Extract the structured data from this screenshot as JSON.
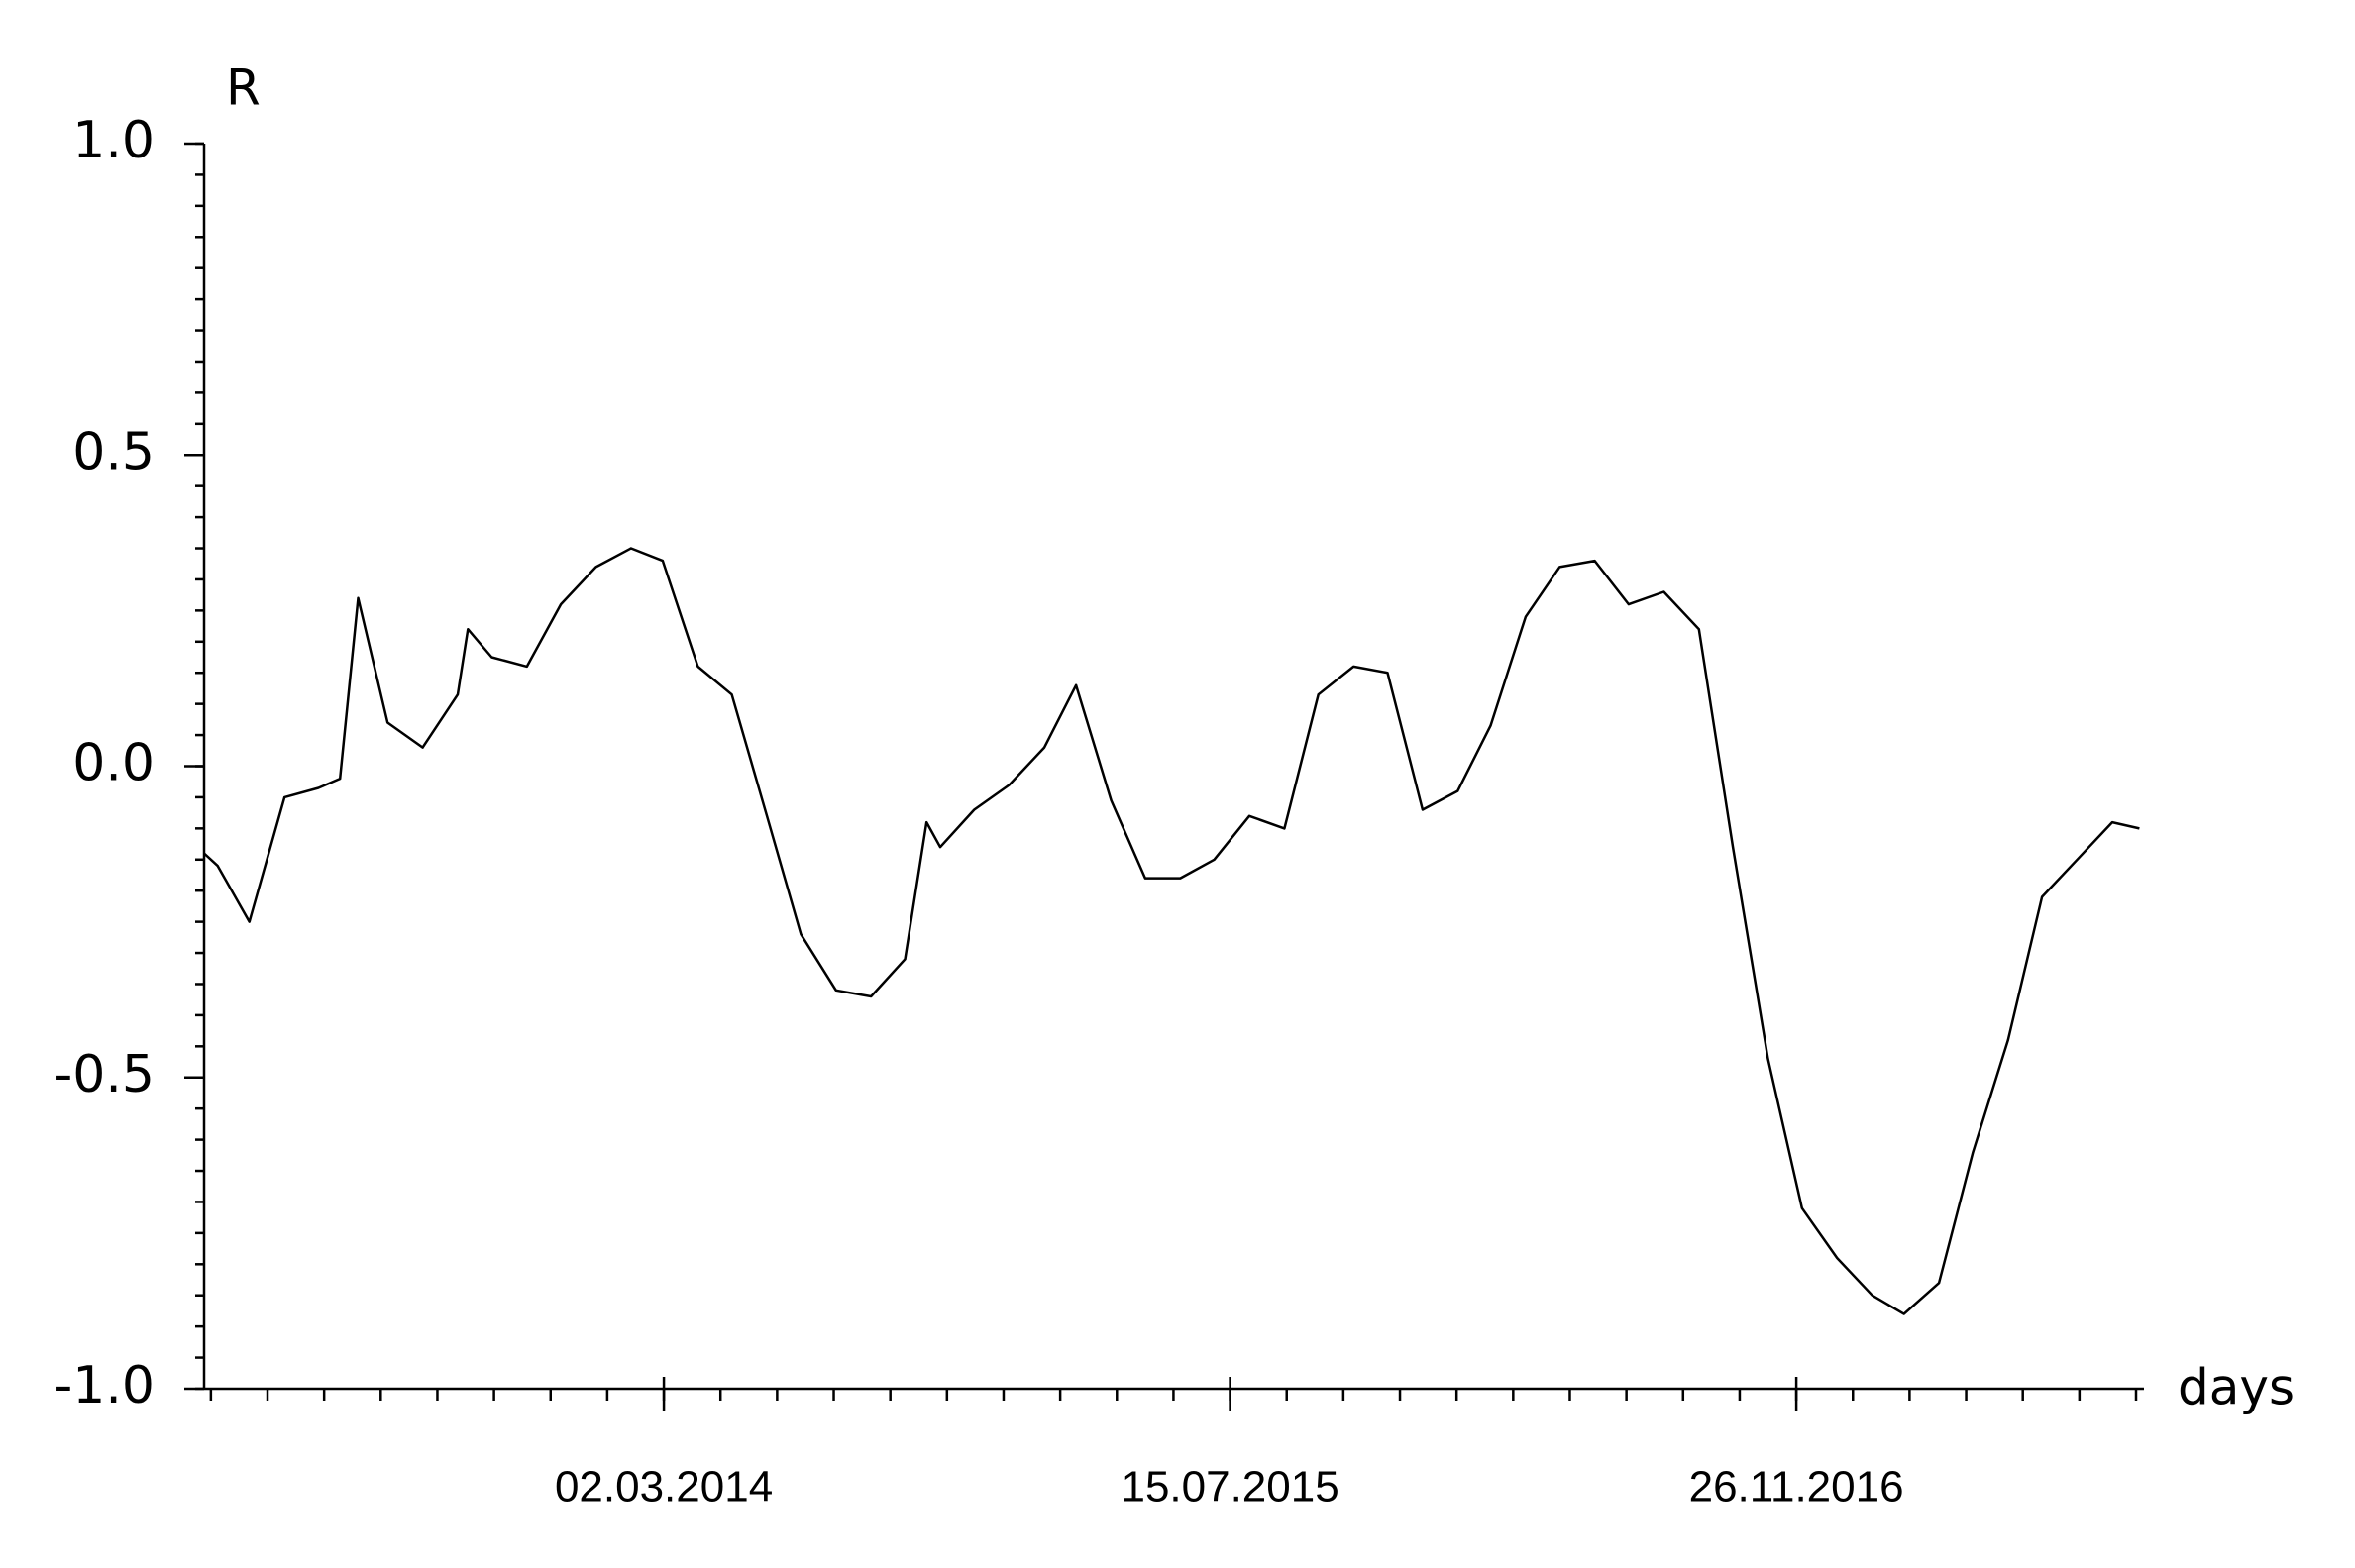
{
  "chart_data": {
    "type": "line",
    "y_label": "R",
    "x_label": "days",
    "x": [
      "2013-01-20",
      "2013-02-01",
      "2013-03-01",
      "2013-04-01",
      "2013-05-01",
      "2013-05-20",
      "2013-06-05",
      "2013-07-01",
      "2013-08-01",
      "2013-09-01",
      "2013-09-10",
      "2013-10-01",
      "2013-11-01",
      "2013-12-01",
      "2014-01-01",
      "2014-02-01",
      "2014-03-01",
      "2014-04-01",
      "2014-05-01",
      "2014-06-01",
      "2014-07-01",
      "2014-08-01",
      "2014-09-01",
      "2014-10-01",
      "2014-10-20",
      "2014-11-01",
      "2014-12-01",
      "2015-01-01",
      "2015-02-01",
      "2015-03-01",
      "2015-04-01",
      "2015-05-01",
      "2015-06-01",
      "2015-07-01",
      "2015-08-01",
      "2015-09-01",
      "2015-10-01",
      "2015-11-01",
      "2015-12-01",
      "2016-01-01",
      "2016-02-01",
      "2016-03-01",
      "2016-04-01",
      "2016-05-01",
      "2016-06-01",
      "2016-07-01",
      "2016-08-01",
      "2016-09-01",
      "2016-10-01",
      "2016-11-01",
      "2016-12-01",
      "2017-01-01",
      "2017-02-01",
      "2017-03-01",
      "2017-04-01",
      "2017-05-01",
      "2017-06-01",
      "2017-07-01",
      "2017-08-01",
      "2017-09-01",
      "2017-09-25"
    ],
    "values": [
      -0.14,
      -0.16,
      -0.25,
      -0.05,
      -0.035,
      -0.02,
      0.27,
      0.07,
      0.03,
      0.115,
      0.22,
      0.175,
      0.16,
      0.26,
      0.32,
      0.35,
      0.33,
      0.16,
      0.115,
      -0.08,
      -0.27,
      -0.36,
      -0.37,
      -0.31,
      -0.09,
      -0.13,
      -0.07,
      -0.03,
      0.03,
      0.13,
      -0.055,
      -0.18,
      -0.18,
      -0.15,
      -0.08,
      -0.1,
      0.115,
      0.16,
      0.15,
      -0.07,
      -0.04,
      0.065,
      0.24,
      0.32,
      0.33,
      0.26,
      0.28,
      0.22,
      -0.13,
      -0.47,
      -0.71,
      -0.79,
      -0.85,
      -0.88,
      -0.83,
      -0.62,
      -0.44,
      -0.21,
      -0.15,
      -0.09,
      -0.1
    ],
    "color": "#000000",
    "xlim": [
      "2013-01-20",
      "2017-09-29"
    ],
    "xticks": [
      {
        "value": "2014-03-02",
        "label": "02.03.2014"
      },
      {
        "value": "2015-07-15",
        "label": "15.07.2015"
      },
      {
        "value": "2016-11-26",
        "label": "26.11.2016"
      }
    ],
    "x_minor_step_days": 50,
    "ylim": [
      -1,
      1
    ],
    "yticks": [
      {
        "value": -1,
        "label": "-1.0"
      },
      -0.5,
      {
        "value": 0,
        "label": "0.0"
      },
      0.5,
      {
        "value": 1,
        "label": "1.0"
      }
    ],
    "y_minor_step": 0.05,
    "grid": false
  }
}
